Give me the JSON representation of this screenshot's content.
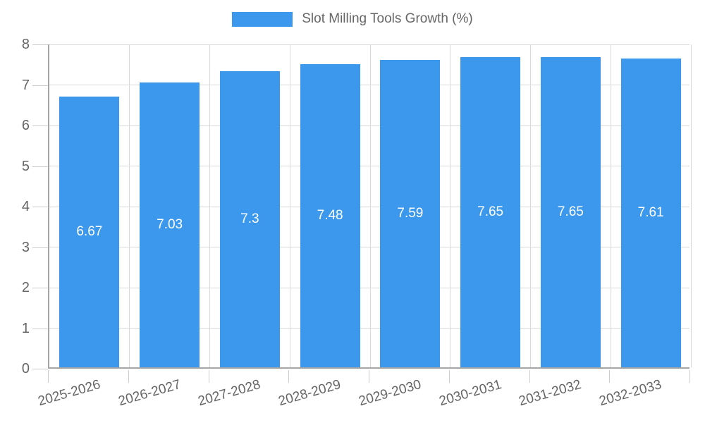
{
  "chart_data": {
    "type": "bar",
    "legend_label": "Slot Milling Tools Growth (%)",
    "legend_position": "top",
    "categories": [
      "2025-2026",
      "2026-2027",
      "2027-2028",
      "2028-2029",
      "2029-2030",
      "2030-2031",
      "2031-2032",
      "2032-2033"
    ],
    "values": [
      6.67,
      7.03,
      7.3,
      7.48,
      7.59,
      7.65,
      7.65,
      7.61
    ],
    "value_labels": [
      "6.67",
      "7.03",
      "7.3",
      "7.48",
      "7.59",
      "7.65",
      "7.65",
      "7.61"
    ],
    "xlabel": "",
    "ylabel": "",
    "ylim": [
      0,
      8
    ],
    "yticks": [
      0,
      1,
      2,
      3,
      4,
      5,
      6,
      7,
      8
    ],
    "grid": true,
    "bar_color": "#3b98ec",
    "bar_label_color": "#ffffff",
    "axis_text_color": "#666666",
    "grid_color": "#d9d9d9",
    "axis_line_color": "#a6a6a6"
  }
}
